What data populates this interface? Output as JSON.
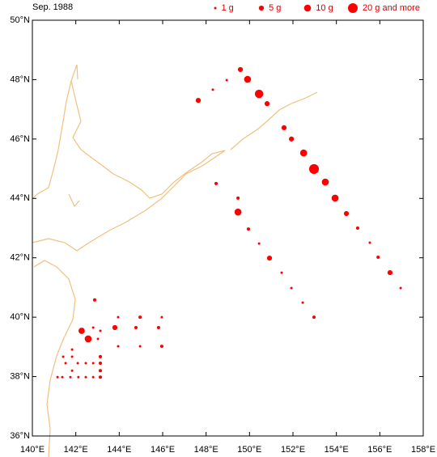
{
  "chart_data": {
    "type": "scatter",
    "title": "Sep. 1988",
    "xlim": [
      140,
      158
    ],
    "ylim": [
      36,
      50
    ],
    "xticks": [
      {
        "value": 140,
        "label": "140°E"
      },
      {
        "value": 142,
        "label": "142°E"
      },
      {
        "value": 144,
        "label": "144°E"
      },
      {
        "value": 146,
        "label": "146°E"
      },
      {
        "value": 148,
        "label": "148°E"
      },
      {
        "value": 150,
        "label": "150°E"
      },
      {
        "value": 152,
        "label": "152°E"
      },
      {
        "value": 154,
        "label": "154°E"
      },
      {
        "value": 156,
        "label": "156°E"
      },
      {
        "value": 158,
        "label": "158°E"
      }
    ],
    "yticks": [
      {
        "value": 36,
        "label": "36°N"
      },
      {
        "value": 38,
        "label": "38°N"
      },
      {
        "value": 40,
        "label": "40°N"
      },
      {
        "value": 42,
        "label": "42°N"
      },
      {
        "value": 44,
        "label": "44°N"
      },
      {
        "value": 46,
        "label": "46°N"
      },
      {
        "value": 48,
        "label": "48°N"
      },
      {
        "value": 50,
        "label": "50°N"
      }
    ],
    "size_legend": [
      {
        "value": 1,
        "label": "1 g"
      },
      {
        "value": 5,
        "label": "5 g"
      },
      {
        "value": 10,
        "label": "10 g"
      },
      {
        "value": 20,
        "label": "20 g and more"
      }
    ],
    "series": [
      {
        "color": "#ff0000",
        "x": [
          149.58,
          149.91,
          150.44,
          150.81,
          151.59,
          151.93,
          152.49,
          152.97,
          153.49,
          153.94,
          154.46,
          154.98,
          155.54,
          155.92,
          156.47,
          156.96,
          148.95,
          148.31,
          147.64,
          148.46,
          149.47,
          149.47,
          149.95,
          150.44,
          150.92,
          151.48,
          151.93,
          152.45,
          152.97,
          142.87,
          143.95,
          144.96,
          145.96,
          142.27,
          142.8,
          143.13,
          143.8,
          144.77,
          145.81,
          142.57,
          143.02,
          143.95,
          144.96,
          145.96,
          141.83,
          141.42,
          141.83,
          143.13,
          141.53,
          142.09,
          142.46,
          142.8,
          143.13,
          141.83,
          143.13,
          141.16,
          141.38,
          141.75,
          142.12,
          142.46,
          142.8,
          143.13
        ],
        "y": [
          48.34,
          48.01,
          47.52,
          47.19,
          46.38,
          46.0,
          45.53,
          44.99,
          44.55,
          44.01,
          43.49,
          43.0,
          42.51,
          42.02,
          41.5,
          40.98,
          47.98,
          47.66,
          47.3,
          44.5,
          44.01,
          43.54,
          42.97,
          42.48,
          41.99,
          41.5,
          40.98,
          40.49,
          40.0,
          40.58,
          40.0,
          40.0,
          40.0,
          39.54,
          39.65,
          39.54,
          39.65,
          39.65,
          39.65,
          39.27,
          39.27,
          39.02,
          39.02,
          39.02,
          38.91,
          38.67,
          38.67,
          38.67,
          38.45,
          38.45,
          38.45,
          38.45,
          38.45,
          38.2,
          38.2,
          37.98,
          37.98,
          37.98,
          37.98,
          37.98,
          37.98,
          37.98
        ],
        "sizes": [
          5,
          10,
          15,
          5,
          5,
          5,
          10,
          20,
          10,
          10,
          5,
          2,
          1,
          2,
          5,
          1,
          1,
          1,
          5,
          2,
          2,
          10,
          2,
          1,
          5,
          1,
          1,
          1,
          2,
          2,
          1,
          2,
          1,
          8,
          1,
          1,
          5,
          2,
          2,
          10,
          1,
          1,
          1,
          2,
          1,
          1,
          1,
          2,
          1,
          1,
          1,
          1,
          2,
          1,
          2,
          1,
          1,
          1,
          1,
          1,
          1,
          2
        ]
      }
    ]
  }
}
